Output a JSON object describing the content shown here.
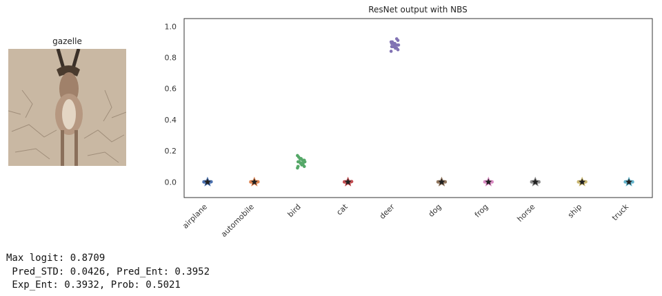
{
  "image_panel": {
    "title": "gazelle"
  },
  "stats": {
    "line1": "Max logit: 0.8709",
    "line2": " Pred_STD: 0.0426, Pred_Ent: 0.3952",
    "line3": " Exp_Ent: 0.3932, Prob: 0.5021"
  },
  "chart_data": {
    "type": "scatter",
    "title": "ResNet output with NBS",
    "xlabel": "",
    "ylabel": "",
    "ylim": [
      -0.1,
      1.05
    ],
    "yticks": [
      "0.0",
      "0.2",
      "0.4",
      "0.6",
      "0.8",
      "1.0"
    ],
    "grid": false,
    "categories": [
      "airplane",
      "automobile",
      "bird",
      "cat",
      "deer",
      "dog",
      "frog",
      "horse",
      "ship",
      "truck"
    ],
    "colors": [
      "#4c72b0",
      "#dd8452",
      "#55a868",
      "#c44e52",
      "#8172b3",
      "#937860",
      "#da8bc3",
      "#8c8c8c",
      "#ccb974",
      "#64b5cd"
    ],
    "mean_star": [
      0.0,
      0.0,
      null,
      0.0,
      null,
      0.0,
      0.0,
      0.0,
      0.0,
      0.0
    ],
    "samples": {
      "airplane": [
        0.0,
        0.0,
        0.001,
        0.0,
        0.0,
        0.002,
        0.0,
        0.001
      ],
      "automobile": [
        0.0,
        0.0,
        0.001,
        0.0,
        0.0,
        0.002,
        0.0,
        0.001
      ],
      "bird": [
        0.09,
        0.1,
        0.11,
        0.12,
        0.12,
        0.13,
        0.13,
        0.13,
        0.14,
        0.14,
        0.15,
        0.15,
        0.16,
        0.17,
        0.14,
        0.12,
        0.11,
        0.15,
        0.13,
        0.1
      ],
      "cat": [
        0.0,
        0.001,
        0.0,
        0.002,
        0.001,
        0.0,
        0.0,
        0.003
      ],
      "deer": [
        0.84,
        0.85,
        0.86,
        0.86,
        0.87,
        0.87,
        0.87,
        0.88,
        0.88,
        0.88,
        0.89,
        0.89,
        0.9,
        0.9,
        0.91,
        0.92,
        0.86,
        0.88,
        0.87,
        0.89
      ],
      "dog": [
        0.0,
        0.001,
        0.0,
        0.002,
        0.0,
        0.001,
        0.0,
        0.0
      ],
      "frog": [
        0.0,
        0.0,
        0.001,
        0.0,
        0.002,
        0.0,
        0.001,
        0.0
      ],
      "horse": [
        0.0,
        0.001,
        0.0,
        0.0,
        0.002,
        0.0,
        0.001,
        0.0
      ],
      "ship": [
        0.0,
        0.0,
        0.001,
        0.0,
        0.0,
        0.002,
        0.0,
        0.001
      ],
      "truck": [
        0.0,
        0.001,
        0.0,
        0.002,
        0.0,
        0.0,
        0.001,
        0.0
      ]
    }
  }
}
